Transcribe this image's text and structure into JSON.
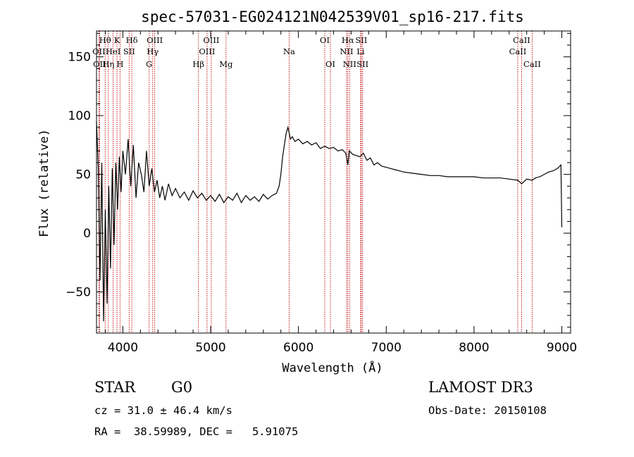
{
  "chart_data": {
    "type": "line",
    "title": "spec-57031-EG024121N042539V01_sp16-217.fits",
    "xlabel": "Wavelength (Å)",
    "ylabel": "Flux (relative)",
    "xlim": [
      3700,
      9100
    ],
    "ylim": [
      -85,
      172
    ],
    "xticks": [
      4000,
      5000,
      6000,
      7000,
      8000,
      9000
    ],
    "yticks": [
      -50,
      0,
      50,
      100,
      150
    ],
    "grid": false,
    "series": [
      {
        "x": [
          3700,
          3720,
          3740,
          3760,
          3780,
          3800,
          3820,
          3840,
          3860,
          3880,
          3900,
          3920,
          3940,
          3960,
          3980,
          4000,
          4030,
          4060,
          4090,
          4120,
          4150,
          4180,
          4210,
          4240,
          4270,
          4300,
          4330,
          4360,
          4390,
          4420,
          4450,
          4480,
          4520,
          4560,
          4600,
          4650,
          4700,
          4750,
          4800,
          4850,
          4900,
          4950,
          5000,
          5050,
          5100,
          5150,
          5200,
          5250,
          5300,
          5350,
          5400,
          5450,
          5500,
          5550,
          5600,
          5650,
          5700,
          5750,
          5780,
          5800,
          5820,
          5840,
          5860,
          5880,
          5895,
          5910,
          5930,
          5960,
          6000,
          6050,
          6100,
          6150,
          6200,
          6250,
          6300,
          6350,
          6400,
          6450,
          6500,
          6540,
          6563,
          6580,
          6620,
          6660,
          6700,
          6740,
          6780,
          6820,
          6860,
          6900,
          6950,
          7000,
          7050,
          7100,
          7150,
          7200,
          7300,
          7400,
          7500,
          7600,
          7700,
          7800,
          7900,
          8000,
          8100,
          8200,
          8300,
          8400,
          8500,
          8542,
          8600,
          8662,
          8700,
          8750,
          8800,
          8850,
          8900,
          8950,
          8990,
          9000
        ],
        "y": [
          95,
          55,
          -40,
          60,
          -75,
          20,
          -60,
          40,
          -30,
          55,
          -10,
          60,
          20,
          65,
          35,
          70,
          50,
          80,
          40,
          75,
          30,
          60,
          50,
          35,
          70,
          40,
          55,
          35,
          45,
          30,
          40,
          28,
          42,
          32,
          38,
          30,
          35,
          28,
          36,
          30,
          34,
          28,
          32,
          27,
          33,
          26,
          31,
          28,
          34,
          26,
          32,
          28,
          31,
          27,
          33,
          29,
          32,
          34,
          40,
          50,
          65,
          75,
          85,
          90,
          85,
          80,
          82,
          78,
          80,
          76,
          78,
          75,
          77,
          72,
          74,
          72,
          73,
          70,
          71,
          68,
          58,
          70,
          67,
          66,
          65,
          68,
          62,
          64,
          58,
          60,
          57,
          56,
          55,
          54,
          53,
          52,
          51,
          50,
          49,
          49,
          48,
          48,
          48,
          48,
          47,
          47,
          47,
          46,
          45,
          42,
          46,
          45,
          47,
          48,
          50,
          52,
          53,
          55,
          58,
          5
        ]
      }
    ],
    "spectral_lines": [
      {
        "wl": 3727,
        "name": "OII",
        "row": 2
      },
      {
        "wl": 3735,
        "name": "OII",
        "row": 3
      },
      {
        "wl": 3798,
        "name": "Hθ",
        "row": 1
      },
      {
        "wl": 3835,
        "name": "Hη",
        "row": 3
      },
      {
        "wl": 3889,
        "name": "HeI",
        "row": 2
      },
      {
        "wl": 3933,
        "name": "K",
        "row": 1
      },
      {
        "wl": 3968,
        "name": "H",
        "row": 3
      },
      {
        "wl": 4072,
        "name": "SII",
        "row": 2
      },
      {
        "wl": 4102,
        "name": "Hδ",
        "row": 1
      },
      {
        "wl": 4300,
        "name": "G",
        "row": 3
      },
      {
        "wl": 4340,
        "name": "Hγ",
        "row": 2
      },
      {
        "wl": 4363,
        "name": "OIII",
        "row": 1
      },
      {
        "wl": 4861,
        "name": "Hβ",
        "row": 3
      },
      {
        "wl": 4959,
        "name": "OIII",
        "row": 2
      },
      {
        "wl": 5007,
        "name": "OIII",
        "row": 1
      },
      {
        "wl": 5175,
        "name": "Mg",
        "row": 3
      },
      {
        "wl": 5894,
        "name": "Na",
        "row": 2
      },
      {
        "wl": 6300,
        "name": "OI",
        "row": 1
      },
      {
        "wl": 6364,
        "name": "OI",
        "row": 3
      },
      {
        "wl": 6548,
        "name": "NII",
        "row": 2
      },
      {
        "wl": 6563,
        "name": "Hα",
        "row": 1
      },
      {
        "wl": 6583,
        "name": "NII",
        "row": 3
      },
      {
        "wl": 6708,
        "name": "Li",
        "row": 2
      },
      {
        "wl": 6716,
        "name": "SII",
        "row": 1
      },
      {
        "wl": 6731,
        "name": "SII",
        "row": 3
      },
      {
        "wl": 8498,
        "name": "CaII",
        "row": 2
      },
      {
        "wl": 8542,
        "name": "CaII",
        "row": 1
      },
      {
        "wl": 8662,
        "name": "CaII",
        "row": 3
      }
    ],
    "colors": {
      "spectrum": "#000000",
      "lines": "#c00000",
      "axes": "#000000"
    }
  },
  "info": {
    "class": "STAR",
    "subclass": "G0",
    "survey": "LAMOST DR3",
    "redshift": "cz = 31.0 ± 46.4 km/s",
    "obs_date": "Obs-Date: 20150108",
    "coords": "RA =  38.59989, DEC =   5.91075"
  }
}
